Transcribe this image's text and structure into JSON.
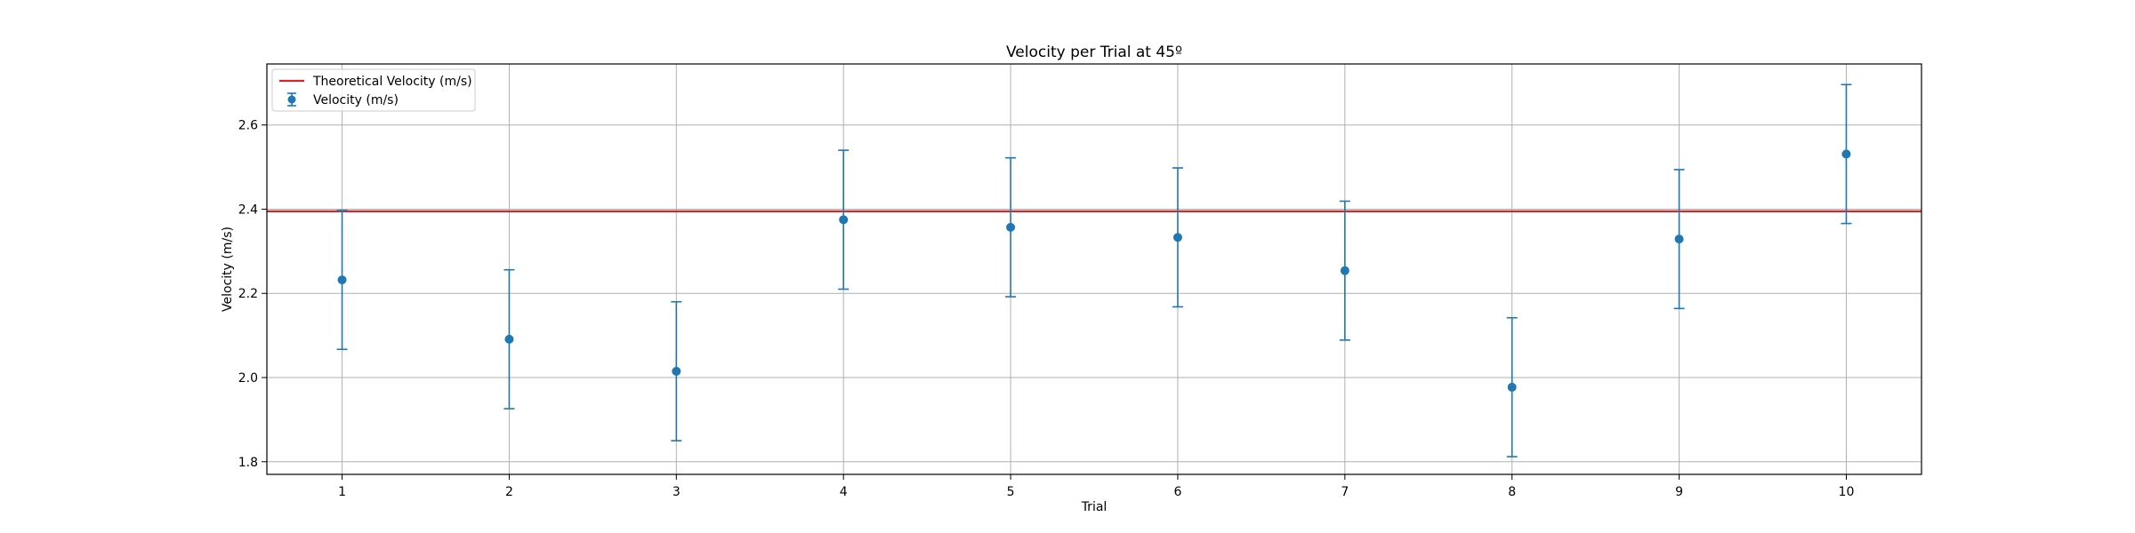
{
  "chart_data": {
    "type": "scatter",
    "title": "Velocity per Trial at 45º",
    "xlabel": "Trial",
    "ylabel": "Velocity (m/s)",
    "xlim": [
      0.55,
      10.45
    ],
    "ylim": [
      1.77,
      2.745
    ],
    "xticks": [
      1,
      2,
      3,
      4,
      5,
      6,
      7,
      8,
      9,
      10
    ],
    "yticks": [
      1.8,
      2.0,
      2.2,
      2.4,
      2.6
    ],
    "grid": true,
    "legend_position": "upper-left",
    "reference_line": {
      "name": "Theoretical Velocity (m/s)",
      "y": 2.395,
      "color": "#d62728"
    },
    "series": [
      {
        "name": "Velocity (m/s)",
        "color": "#1f77b4",
        "x": [
          1,
          2,
          3,
          4,
          5,
          6,
          7,
          8,
          9,
          10
        ],
        "y": [
          2.232,
          2.091,
          2.015,
          2.375,
          2.357,
          2.333,
          2.254,
          1.977,
          2.329,
          2.531
        ],
        "error": [
          0.165,
          0.165,
          0.165,
          0.165,
          0.165,
          0.165,
          0.165,
          0.165,
          0.165,
          0.165
        ]
      }
    ]
  }
}
